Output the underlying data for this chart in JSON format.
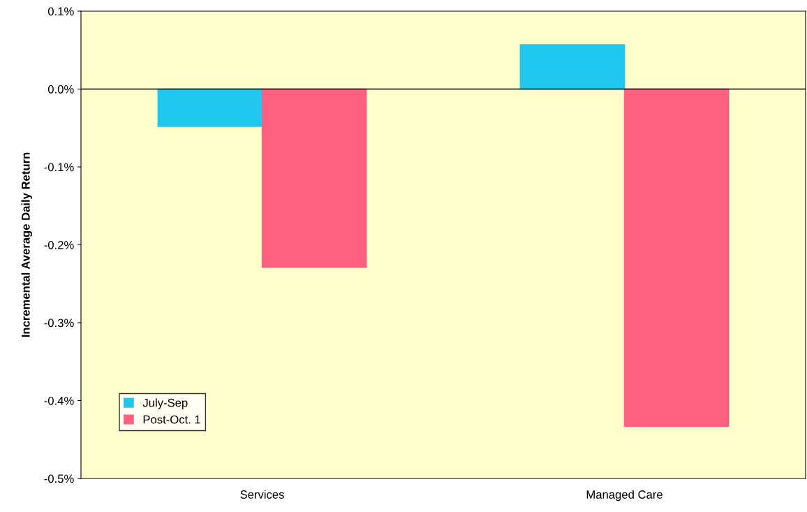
{
  "chart_data": {
    "type": "bar",
    "ylabel": "Incremental Average Daily Return",
    "categories": [
      "Services",
      "Managed Care"
    ],
    "series": [
      {
        "name": "July-Sep",
        "color": "#20c8f0",
        "values": [
          -0.048,
          0.057
        ]
      },
      {
        "name": "Post-Oct. 1",
        "color": "#ff6080",
        "values": [
          -0.229,
          -0.433
        ]
      }
    ],
    "ylim": [
      -0.5,
      0.1
    ],
    "yticks": [
      {
        "value": -0.5,
        "label": "-0.5%"
      },
      {
        "value": -0.4,
        "label": "-0.4%"
      },
      {
        "value": -0.3,
        "label": "-0.3%"
      },
      {
        "value": -0.2,
        "label": "-0.2%"
      },
      {
        "value": -0.1,
        "label": "-0.1%"
      },
      {
        "value": 0.0,
        "label": "0.0%"
      },
      {
        "value": 0.1,
        "label": "0.1%"
      }
    ],
    "ref_lines": [
      {
        "axis": "y",
        "value": 0,
        "color": "#000000"
      }
    ],
    "grid": false,
    "legend": "bottom left"
  }
}
